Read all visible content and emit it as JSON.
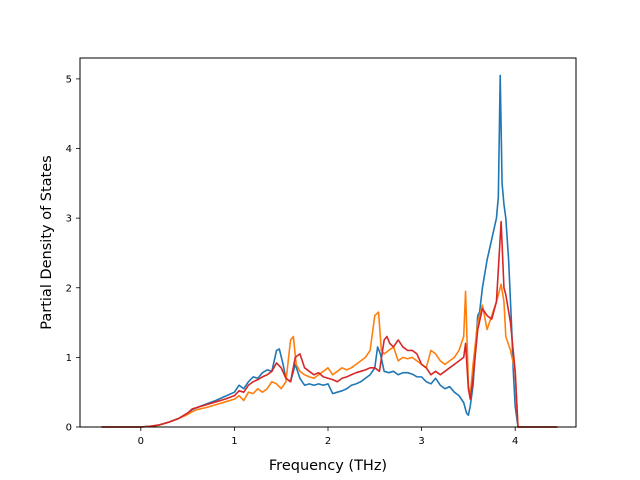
{
  "chart_data": {
    "type": "line",
    "title": "",
    "xlabel": "Frequency (THz)",
    "ylabel": "Partial Density of States",
    "xlim": [
      -0.65,
      4.65
    ],
    "ylim": [
      0,
      5.3
    ],
    "xticks": [
      0,
      1,
      2,
      3,
      4
    ],
    "yticks": [
      0,
      1,
      2,
      3,
      4,
      5
    ],
    "xtick_labels": [
      "0",
      "1",
      "2",
      "3",
      "4"
    ],
    "ytick_labels": [
      "0",
      "1",
      "2",
      "3",
      "4",
      "5"
    ],
    "grid": false,
    "legend": "none",
    "series": [
      {
        "color": "#1f77b4",
        "x": [
          -0.42,
          -0.1,
          0.0,
          0.1,
          0.2,
          0.3,
          0.4,
          0.5,
          0.55,
          0.6,
          0.7,
          0.8,
          0.9,
          1.0,
          1.05,
          1.1,
          1.15,
          1.2,
          1.25,
          1.3,
          1.35,
          1.4,
          1.45,
          1.48,
          1.52,
          1.55,
          1.6,
          1.65,
          1.7,
          1.75,
          1.8,
          1.85,
          1.9,
          1.95,
          2.0,
          2.05,
          2.1,
          2.15,
          2.2,
          2.25,
          2.3,
          2.35,
          2.4,
          2.45,
          2.5,
          2.53,
          2.56,
          2.6,
          2.65,
          2.7,
          2.75,
          2.8,
          2.85,
          2.9,
          2.95,
          3.0,
          3.05,
          3.1,
          3.15,
          3.2,
          3.25,
          3.3,
          3.35,
          3.4,
          3.45,
          3.48,
          3.5,
          3.52,
          3.55,
          3.58,
          3.6,
          3.62,
          3.65,
          3.7,
          3.75,
          3.8,
          3.82,
          3.84,
          3.86,
          3.88,
          3.9,
          3.93,
          3.96,
          3.98,
          4.0,
          4.03,
          4.06,
          4.2,
          4.45
        ],
        "y": [
          0,
          0,
          0,
          0.01,
          0.03,
          0.07,
          0.12,
          0.2,
          0.25,
          0.28,
          0.33,
          0.38,
          0.44,
          0.5,
          0.6,
          0.55,
          0.65,
          0.72,
          0.7,
          0.78,
          0.82,
          0.8,
          1.1,
          1.12,
          0.9,
          0.7,
          0.65,
          0.9,
          0.7,
          0.6,
          0.62,
          0.6,
          0.62,
          0.6,
          0.62,
          0.48,
          0.5,
          0.52,
          0.55,
          0.6,
          0.62,
          0.65,
          0.7,
          0.75,
          0.85,
          1.15,
          1.05,
          0.8,
          0.78,
          0.8,
          0.75,
          0.78,
          0.78,
          0.76,
          0.72,
          0.72,
          0.65,
          0.62,
          0.7,
          0.6,
          0.55,
          0.58,
          0.5,
          0.45,
          0.35,
          0.2,
          0.17,
          0.3,
          0.6,
          1.2,
          1.6,
          1.65,
          2.0,
          2.4,
          2.7,
          3.0,
          3.3,
          5.05,
          3.5,
          3.2,
          3.0,
          2.4,
          1.5,
          0.8,
          0.3,
          0,
          0,
          0,
          0
        ]
      },
      {
        "color": "#ff7f0e",
        "x": [
          -0.42,
          -0.1,
          0.0,
          0.1,
          0.2,
          0.3,
          0.4,
          0.5,
          0.55,
          0.6,
          0.7,
          0.8,
          0.9,
          1.0,
          1.05,
          1.1,
          1.15,
          1.2,
          1.25,
          1.3,
          1.35,
          1.4,
          1.45,
          1.5,
          1.55,
          1.6,
          1.63,
          1.66,
          1.7,
          1.75,
          1.8,
          1.85,
          1.9,
          1.95,
          2.0,
          2.05,
          2.1,
          2.15,
          2.2,
          2.25,
          2.3,
          2.35,
          2.4,
          2.45,
          2.5,
          2.54,
          2.57,
          2.6,
          2.65,
          2.7,
          2.75,
          2.8,
          2.85,
          2.9,
          2.95,
          3.0,
          3.05,
          3.1,
          3.15,
          3.2,
          3.25,
          3.3,
          3.35,
          3.4,
          3.45,
          3.47,
          3.5,
          3.52,
          3.55,
          3.6,
          3.65,
          3.7,
          3.75,
          3.8,
          3.85,
          3.88,
          3.9,
          3.95,
          4.0,
          4.03,
          4.06,
          4.2,
          4.45
        ],
        "y": [
          0,
          0,
          0,
          0.01,
          0.03,
          0.07,
          0.12,
          0.18,
          0.22,
          0.25,
          0.28,
          0.32,
          0.36,
          0.4,
          0.45,
          0.38,
          0.5,
          0.48,
          0.55,
          0.5,
          0.55,
          0.65,
          0.62,
          0.55,
          0.65,
          1.25,
          1.3,
          0.9,
          0.8,
          0.75,
          0.72,
          0.7,
          0.75,
          0.8,
          0.85,
          0.75,
          0.8,
          0.85,
          0.82,
          0.85,
          0.9,
          0.95,
          1.0,
          1.1,
          1.6,
          1.65,
          1.1,
          1.05,
          1.1,
          1.15,
          0.95,
          1.0,
          0.98,
          1.0,
          0.95,
          0.9,
          0.85,
          1.1,
          1.05,
          0.95,
          0.9,
          0.95,
          1.0,
          1.1,
          1.3,
          1.95,
          0.6,
          0.45,
          0.9,
          1.5,
          1.75,
          1.4,
          1.6,
          1.8,
          2.05,
          1.8,
          1.3,
          1.1,
          0.8,
          0,
          0,
          0,
          0
        ]
      },
      {
        "color": "#d62728",
        "x": [
          -0.42,
          -0.1,
          0.0,
          0.1,
          0.2,
          0.3,
          0.4,
          0.5,
          0.55,
          0.6,
          0.7,
          0.8,
          0.9,
          1.0,
          1.05,
          1.1,
          1.15,
          1.2,
          1.25,
          1.3,
          1.35,
          1.4,
          1.45,
          1.5,
          1.55,
          1.6,
          1.65,
          1.7,
          1.75,
          1.8,
          1.85,
          1.9,
          1.95,
          2.0,
          2.05,
          2.1,
          2.15,
          2.2,
          2.25,
          2.3,
          2.35,
          2.4,
          2.45,
          2.5,
          2.55,
          2.6,
          2.63,
          2.66,
          2.7,
          2.75,
          2.8,
          2.85,
          2.9,
          2.95,
          3.0,
          3.05,
          3.1,
          3.15,
          3.2,
          3.25,
          3.3,
          3.35,
          3.4,
          3.45,
          3.47,
          3.5,
          3.52,
          3.55,
          3.6,
          3.65,
          3.7,
          3.75,
          3.8,
          3.85,
          3.88,
          3.9,
          3.95,
          4.0,
          4.03,
          4.06,
          4.2,
          4.45
        ],
        "y": [
          0,
          0,
          0,
          0.01,
          0.03,
          0.07,
          0.12,
          0.2,
          0.26,
          0.28,
          0.32,
          0.36,
          0.4,
          0.45,
          0.52,
          0.5,
          0.6,
          0.65,
          0.68,
          0.72,
          0.75,
          0.8,
          0.92,
          0.85,
          0.7,
          0.65,
          1.0,
          1.05,
          0.85,
          0.8,
          0.75,
          0.78,
          0.72,
          0.7,
          0.68,
          0.65,
          0.7,
          0.72,
          0.75,
          0.78,
          0.8,
          0.82,
          0.85,
          0.85,
          0.8,
          1.25,
          1.3,
          1.2,
          1.15,
          1.25,
          1.15,
          1.1,
          1.1,
          1.05,
          0.9,
          0.85,
          0.75,
          0.8,
          0.75,
          0.8,
          0.85,
          0.9,
          0.95,
          1.0,
          1.2,
          0.55,
          0.4,
          0.7,
          1.4,
          1.7,
          1.6,
          1.55,
          1.8,
          2.95,
          2.0,
          1.9,
          1.5,
          0.8,
          0,
          0,
          0,
          0
        ]
      }
    ]
  }
}
